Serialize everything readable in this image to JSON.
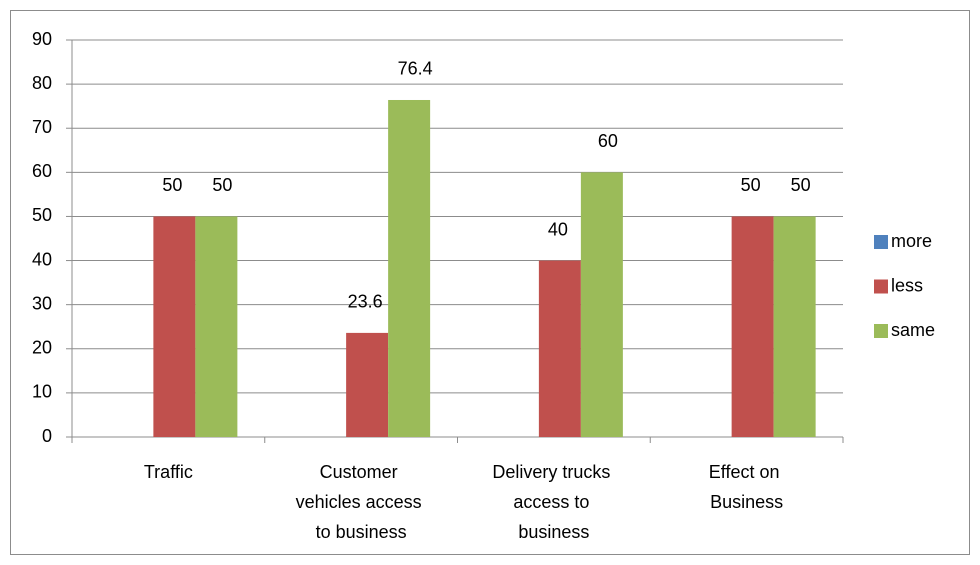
{
  "chart_data": {
    "type": "bar",
    "categories": [
      "Traffic",
      "Customer vehicles access to business",
      "Delivery trucks access to business",
      "Effect on Business"
    ],
    "series": [
      {
        "name": "more",
        "color": "#4f81bd",
        "values": [
          null,
          null,
          null,
          null
        ]
      },
      {
        "name": "less",
        "color": "#c0504d",
        "values": [
          50,
          23.6,
          40,
          50
        ]
      },
      {
        "name": "same",
        "color": "#9bbb59",
        "values": [
          50,
          76.4,
          60,
          50
        ]
      }
    ],
    "ylim": [
      0,
      90
    ],
    "yticks": [
      0,
      10,
      20,
      30,
      40,
      50,
      60,
      70,
      80,
      90
    ],
    "grid": true,
    "legend": "right",
    "data_labels": true
  }
}
